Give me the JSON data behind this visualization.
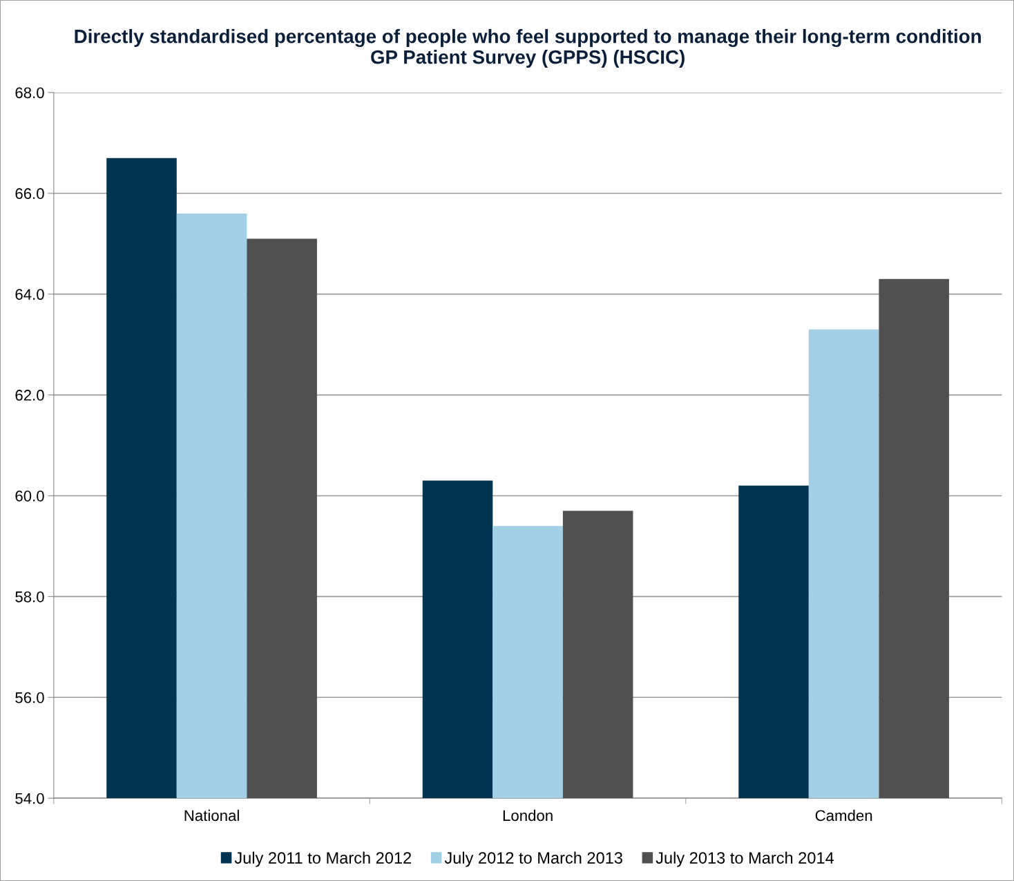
{
  "chart_data": {
    "type": "bar",
    "title": "Directly standardised percentage of people who feel supported to manage their long-term condition\nGP Patient Survey (GPPS) (HSCIC)",
    "categories": [
      "National",
      "London",
      "Camden"
    ],
    "series": [
      {
        "name": "July 2011 to March 2012",
        "color": "#003451",
        "values": [
          66.7,
          60.3,
          60.2
        ]
      },
      {
        "name": "July 2012 to March 2013",
        "color": "#a2d0e6",
        "values": [
          65.6,
          59.4,
          63.3
        ]
      },
      {
        "name": "July 2013 to March 2014",
        "color": "#505050",
        "values": [
          65.1,
          59.7,
          64.3
        ]
      }
    ],
    "ylim": [
      54,
      68
    ],
    "yticks": [
      {
        "value": 54,
        "label": "54.0"
      },
      {
        "value": 56,
        "label": "56.0"
      },
      {
        "value": 58,
        "label": "58.0"
      },
      {
        "value": 60,
        "label": "60.0"
      },
      {
        "value": 62,
        "label": "62.0"
      },
      {
        "value": 64,
        "label": "64.0"
      },
      {
        "value": 66,
        "label": "66.0"
      },
      {
        "value": 68,
        "label": "68.0"
      }
    ],
    "grid": "y",
    "legend": "bottom"
  }
}
